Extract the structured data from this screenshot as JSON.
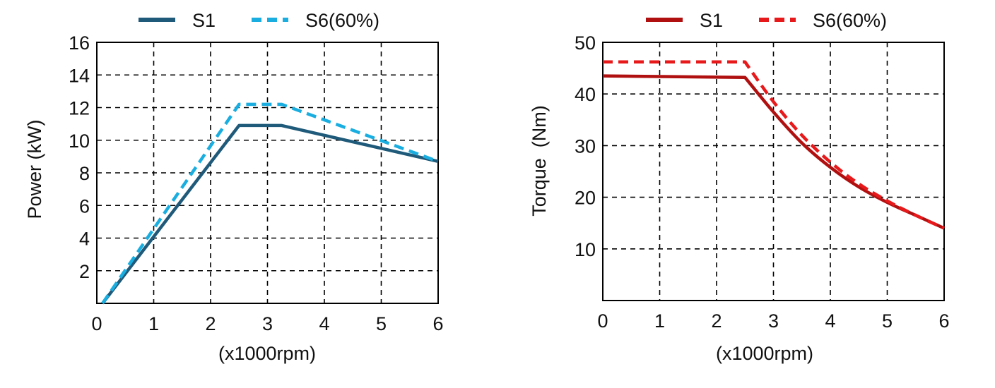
{
  "charts": [
    {
      "chart_data": {
        "type": "line",
        "xlabel": "(x1000rpm)",
        "ylabel": "Power (kW)",
        "xlim": [
          0,
          6
        ],
        "ylim": [
          0,
          16
        ],
        "xticks": [
          "0",
          "1",
          "2",
          "3",
          "4",
          "5",
          "6"
        ],
        "yticks": [
          "2",
          "4",
          "6",
          "8",
          "10",
          "12",
          "14",
          "16"
        ],
        "grid": true,
        "legend": "top",
        "series": [
          {
            "name": "S1",
            "style": "solid",
            "color": "#1f5a7a",
            "x": [
              0.1,
              2.5,
              3.25,
              6
            ],
            "y": [
              0,
              10.9,
              10.9,
              8.7
            ]
          },
          {
            "name": "S6(60%)",
            "style": "dashed",
            "color": "#1aaee0",
            "x": [
              0.1,
              2.5,
              3.25,
              6
            ],
            "y": [
              0,
              12.2,
              12.2,
              8.7
            ]
          }
        ]
      }
    },
    {
      "chart_data": {
        "type": "line",
        "xlabel": "(x1000rpm)",
        "ylabel": "Torque  (Nm)",
        "xlim": [
          0,
          6
        ],
        "ylim": [
          0,
          50
        ],
        "xticks": [
          "0",
          "1",
          "2",
          "3",
          "4",
          "5",
          "6"
        ],
        "yticks": [
          "10",
          "20",
          "30",
          "40",
          "50"
        ],
        "grid": true,
        "legend": "top",
        "series": [
          {
            "name": "S1",
            "style": "solid",
            "color": "#b01010",
            "x": [
              0,
              2.5,
              3,
              3.5,
              4,
              4.5,
              5,
              5.5,
              6
            ],
            "y": [
              43.5,
              43.2,
              36.5,
              30.5,
              25.8,
              22.0,
              19.0,
              16.5,
              14.0
            ]
          },
          {
            "name": "S6(60%)",
            "style": "dashed",
            "color": "#e8191b",
            "x": [
              0,
              2.5,
              3,
              3.5,
              4,
              4.5,
              5,
              5.5,
              6
            ],
            "y": [
              46.2,
              46.2,
              38.5,
              32.0,
              26.8,
              22.6,
              19.3,
              16.5,
              14.0
            ]
          }
        ]
      }
    }
  ]
}
